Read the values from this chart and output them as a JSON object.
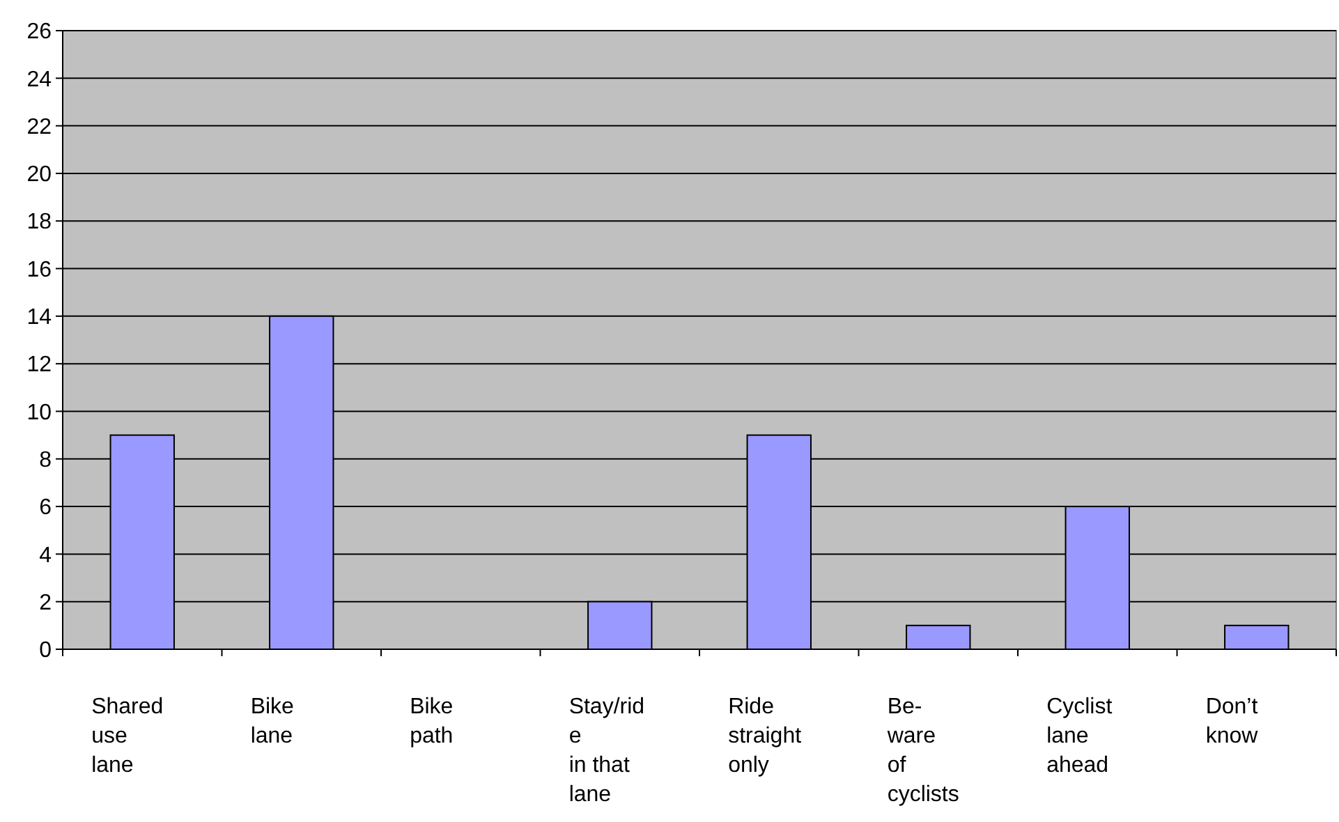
{
  "chart_data": {
    "type": "bar",
    "categories": [
      "Shared\nuse\nlane",
      "Bike\nlane",
      "Bike\npath",
      "Stay/rid\ne\nin that\nlane",
      "Ride\nstraight\nonly",
      "Be-\nware\nof\ncyclists",
      "Cyclist\nlane\nahead",
      "Don’t\nknow"
    ],
    "values": [
      9,
      14,
      0,
      2,
      9,
      1,
      6,
      1
    ],
    "color": "#9999ff",
    "ylim": [
      0,
      26
    ],
    "yticks": [
      0,
      2,
      4,
      6,
      8,
      10,
      12,
      14,
      16,
      18,
      20,
      22,
      24,
      26
    ],
    "grid": "y"
  }
}
